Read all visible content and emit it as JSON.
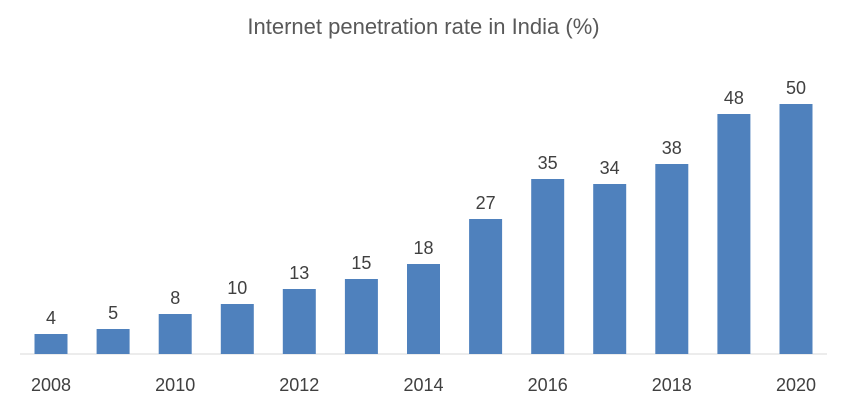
{
  "chart_data": {
    "type": "bar",
    "title": "Internet penetration rate in India (%)",
    "categories": [
      "2008",
      "2009",
      "2010",
      "2011",
      "2012",
      "2013",
      "2014",
      "2015",
      "2016",
      "2017",
      "2018",
      "2019",
      "2020"
    ],
    "values": [
      4,
      5,
      8,
      10,
      13,
      15,
      18,
      27,
      35,
      34,
      38,
      48,
      50
    ],
    "x_tick_labels": [
      "2008",
      "",
      "2010",
      "",
      "2012",
      "",
      "2014",
      "",
      "2016",
      "",
      "2018",
      "",
      "2020"
    ],
    "xlabel": "",
    "ylabel": "",
    "ylim": [
      0,
      60
    ],
    "grid": false,
    "legend": "none",
    "bar_color": "#4f81bd",
    "axis_color": "#d9d9d9"
  }
}
